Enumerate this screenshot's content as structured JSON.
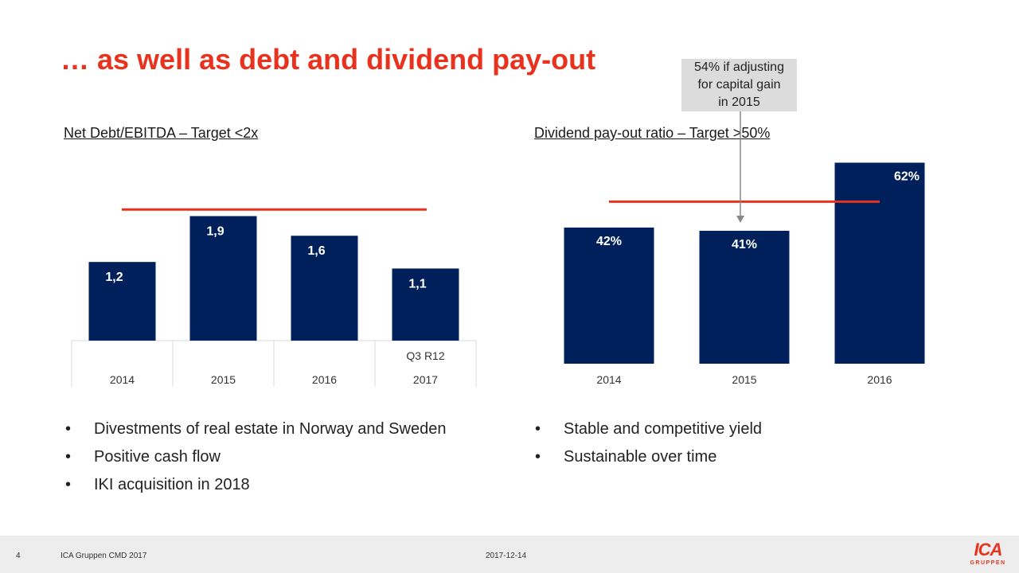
{
  "title": "… as well as debt and dividend pay-out",
  "note": {
    "lines": [
      "54% if adjusting",
      "for capital gain",
      "in 2015"
    ]
  },
  "colors": {
    "bar": "#00205b",
    "target": "#e8321e",
    "title": "#e8321e",
    "note_bg": "#dcdcdc"
  },
  "chart_data": [
    {
      "type": "bar",
      "title": "Net Debt/EBITDA – Target <2x",
      "categories": [
        "2014",
        "2015",
        "2016",
        "2017"
      ],
      "category_sublabels": [
        "",
        "",
        "",
        "Q3 R12"
      ],
      "values": [
        1.2,
        1.9,
        1.6,
        1.1
      ],
      "value_labels": [
        "1,2",
        "1,9",
        "1,6",
        "1,1"
      ],
      "target": 2,
      "ylim": [
        0,
        2.55
      ],
      "grid": false
    },
    {
      "type": "bar",
      "title": "Dividend pay-out ratio – Target >50%",
      "categories": [
        "2014",
        "2015",
        "2016"
      ],
      "values": [
        42,
        41,
        62
      ],
      "value_labels": [
        "42%",
        "41%",
        "62%"
      ],
      "target": 50,
      "ylim": [
        0,
        68
      ],
      "grid": false
    }
  ],
  "bullets_left": [
    "Divestments of real estate in Norway and Sweden",
    "Positive cash flow",
    "IKI acquisition in 2018"
  ],
  "bullets_right": [
    "Stable and competitive yield",
    "Sustainable over time"
  ],
  "bullet_char": "•",
  "footer": {
    "page": "4",
    "company": "ICA Gruppen CMD 2017",
    "date": "2017-12-14",
    "logo_main": "ICA",
    "logo_sub": "GRUPPEN"
  }
}
